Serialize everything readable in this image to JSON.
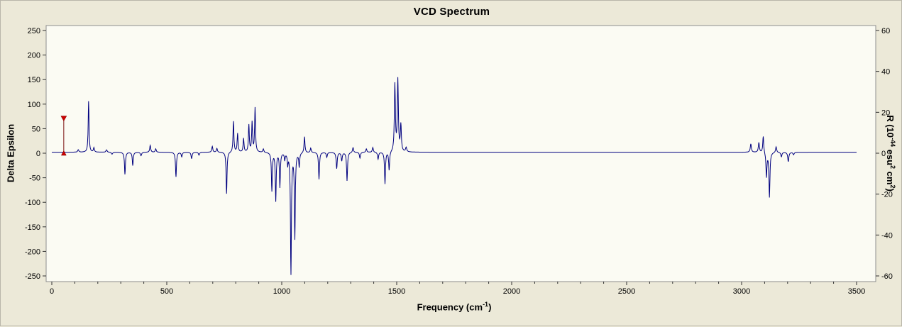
{
  "colors": {
    "window_background": "#ece9d8",
    "plot_background": "#fbfbf3",
    "plot_border": "#8e8e8e",
    "line": "#00007f",
    "cursor_marker": "#cc0000",
    "text": "#000000"
  },
  "chart_data": {
    "type": "line",
    "title": "VCD Spectrum",
    "xlabel": "Frequency (cm⁻¹)",
    "xlabel_parts": {
      "pre": "Frequency (cm",
      "sup": "-1",
      "post": ")"
    },
    "ylabel_left": "Delta Epsilon",
    "ylabel_right": "R (10⁻⁴⁴ esu² cm²)",
    "ylabel_right_parts": {
      "pre": "R (10",
      "sup1": "-44",
      "mid1": " esu",
      "sup2": "2",
      "mid2": " cm",
      "sup3": "2",
      "post": ")"
    },
    "xlim": [
      0,
      3500
    ],
    "ylim_left": [
      -250,
      250
    ],
    "ylim_right": [
      -60,
      60
    ],
    "x_ticks": [
      0,
      500,
      1000,
      1500,
      2000,
      2500,
      3000,
      3500
    ],
    "x_minor_step": 100,
    "y_ticks_left": [
      250,
      200,
      150,
      100,
      50,
      0,
      -50,
      -100,
      -150,
      -200,
      -250
    ],
    "y_ticks_right": [
      60,
      40,
      20,
      0,
      -20,
      -40,
      -60
    ],
    "grid": false,
    "legend": "none",
    "line_color": "#00007f",
    "plot_bg": "#fbfbf3",
    "marker_color": "#cc0000",
    "baseline": 2,
    "peaks": [
      {
        "c": 115,
        "y": 5,
        "w": 3
      },
      {
        "c": 160,
        "y": 104,
        "w": 2.2
      },
      {
        "c": 183,
        "y": 9,
        "w": 2.5
      },
      {
        "c": 238,
        "y": 5,
        "w": 3
      },
      {
        "c": 262,
        "y": -4,
        "w": 3
      },
      {
        "c": 318,
        "y": -45,
        "w": 2.4
      },
      {
        "c": 352,
        "y": -27,
        "w": 2.4
      },
      {
        "c": 388,
        "y": -7,
        "w": 3
      },
      {
        "c": 428,
        "y": 14,
        "w": 2.6
      },
      {
        "c": 452,
        "y": 7,
        "w": 2.6
      },
      {
        "c": 540,
        "y": -50,
        "w": 2.4
      },
      {
        "c": 565,
        "y": -9,
        "w": 2.6
      },
      {
        "c": 608,
        "y": -13,
        "w": 2.6
      },
      {
        "c": 640,
        "y": -6,
        "w": 2.6
      },
      {
        "c": 698,
        "y": 12,
        "w": 2.6
      },
      {
        "c": 718,
        "y": 8,
        "w": 2.6
      },
      {
        "c": 760,
        "y": -85,
        "w": 2.3
      },
      {
        "c": 790,
        "y": 63,
        "w": 2.3
      },
      {
        "c": 808,
        "y": 38,
        "w": 2.3
      },
      {
        "c": 834,
        "y": 28,
        "w": 2.3
      },
      {
        "c": 857,
        "y": 55,
        "w": 2.3
      },
      {
        "c": 871,
        "y": 60,
        "w": 2.3
      },
      {
        "c": 884,
        "y": 90,
        "w": 2.3
      },
      {
        "c": 920,
        "y": 7,
        "w": 2.6
      },
      {
        "c": 957,
        "y": -78,
        "w": 2.3
      },
      {
        "c": 974,
        "y": -98,
        "w": 2.3
      },
      {
        "c": 992,
        "y": -70,
        "w": 2.3
      },
      {
        "c": 1013,
        "y": -14,
        "w": 2
      },
      {
        "c": 1026,
        "y": -22,
        "w": 2
      },
      {
        "c": 1040,
        "y": -246,
        "w": 2.4
      },
      {
        "c": 1057,
        "y": -173,
        "w": 2.3
      },
      {
        "c": 1076,
        "y": -28,
        "w": 2.3
      },
      {
        "c": 1099,
        "y": 33,
        "w": 2.4
      },
      {
        "c": 1126,
        "y": 9,
        "w": 2.6
      },
      {
        "c": 1162,
        "y": -55,
        "w": 2.4
      },
      {
        "c": 1196,
        "y": -10,
        "w": 2.6
      },
      {
        "c": 1239,
        "y": -33,
        "w": 2.6
      },
      {
        "c": 1261,
        "y": -17,
        "w": 2.6
      },
      {
        "c": 1284,
        "y": -58,
        "w": 2.4
      },
      {
        "c": 1310,
        "y": 10,
        "w": 2.6
      },
      {
        "c": 1340,
        "y": -12,
        "w": 2.6
      },
      {
        "c": 1368,
        "y": 7,
        "w": 2.6
      },
      {
        "c": 1396,
        "y": 10,
        "w": 2.6
      },
      {
        "c": 1419,
        "y": -14,
        "w": 2.6
      },
      {
        "c": 1449,
        "y": -65,
        "w": 2.4
      },
      {
        "c": 1467,
        "y": -38,
        "w": 2.4
      },
      {
        "c": 1492,
        "y": 137,
        "w": 2.6
      },
      {
        "c": 1505,
        "y": 146,
        "w": 2.6
      },
      {
        "c": 1518,
        "y": 54,
        "w": 2.6
      },
      {
        "c": 1541,
        "y": 9,
        "w": 3
      },
      {
        "c": 3040,
        "y": 17,
        "w": 2.8
      },
      {
        "c": 3075,
        "y": 20,
        "w": 2.8
      },
      {
        "c": 3094,
        "y": 34,
        "w": 2.5
      },
      {
        "c": 3108,
        "y": -50,
        "w": 2.5
      },
      {
        "c": 3121,
        "y": -91,
        "w": 2.5
      },
      {
        "c": 3150,
        "y": 12,
        "w": 2.8
      },
      {
        "c": 3173,
        "y": -9,
        "w": 2.8
      },
      {
        "c": 3203,
        "y": -19,
        "w": 2.8
      },
      {
        "c": 3226,
        "y": -5,
        "w": 2.8
      }
    ],
    "cursor_marker": {
      "x": 52,
      "y1": 0,
      "y2": 70
    }
  }
}
